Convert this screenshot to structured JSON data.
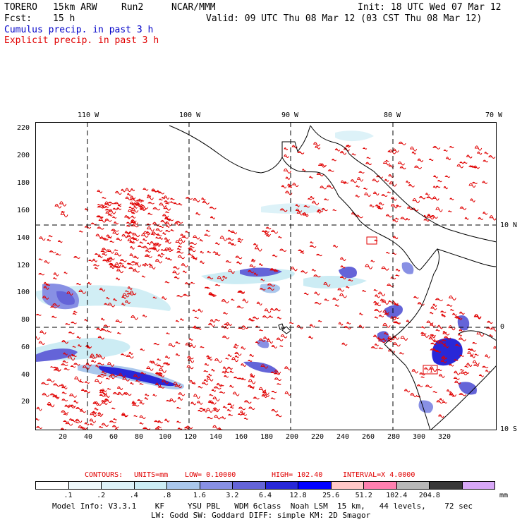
{
  "header": {
    "model": "TORERO",
    "resolution": "15km ARW",
    "run": "Run2",
    "source": "NCAR/MMM",
    "init": "Init: 18 UTC Wed 07 Mar 12",
    "fcst_label": "Fcst:",
    "fcst_value": "15 h",
    "valid": "Valid: 09 UTC Thu 08 Mar 12 (03 CST Thu 08 Mar 12)",
    "field1": "Cumulus precip. in past 3 h",
    "field2": "Explicit precip. in past 3 h",
    "field1_color": "#0000c8",
    "field2_color": "#e00000"
  },
  "map": {
    "lon_labels": [
      "110 W",
      "100 W",
      "90 W",
      "80 W",
      "70 W"
    ],
    "lat_labels": [
      "10 N",
      "0",
      "10 S"
    ],
    "y_ticks": [
      "220",
      "200",
      "180",
      "160",
      "140",
      "120",
      "100",
      "80",
      "60",
      "40",
      "20"
    ],
    "x_ticks": [
      "20",
      "40",
      "60",
      "80",
      "100",
      "120",
      "140",
      "160",
      "180",
      "200",
      "220",
      "240",
      "260",
      "280",
      "300",
      "320"
    ],
    "label_tag": ".1"
  },
  "legend": {
    "contours_label": "CONTOURS:",
    "units": "UNITS=mm",
    "low": "LOW= 0.10000",
    "high": "HIGH= 102.40",
    "interval": "INTERVAL=X 4.0000",
    "unit_suffix": "mm",
    "colors": [
      "#ffffff",
      "#eef8fb",
      "#ddf2f8",
      "#ccecf4",
      "#aac7ec",
      "#8890e4",
      "#6464d8",
      "#2828d8",
      "#0000ff",
      "#ffc8c8",
      "#ff80b0",
      "#b8b8b8",
      "#383838",
      "#d8a8f8"
    ],
    "bounds": [
      ".1",
      ".2",
      ".4",
      ".8",
      "1.6",
      "3.2",
      "6.4",
      "12.8",
      "25.6",
      "51.2",
      "102.4",
      "204.8"
    ]
  },
  "footer": {
    "line1": "Model Info: V3.3.1    KF     YSU PBL   WDM 6class  Noah LSM  15 km,   44 levels,    72 sec",
    "line2": "LW: Godd SW: Goddard DIFF: simple KM: 2D Smagor"
  }
}
